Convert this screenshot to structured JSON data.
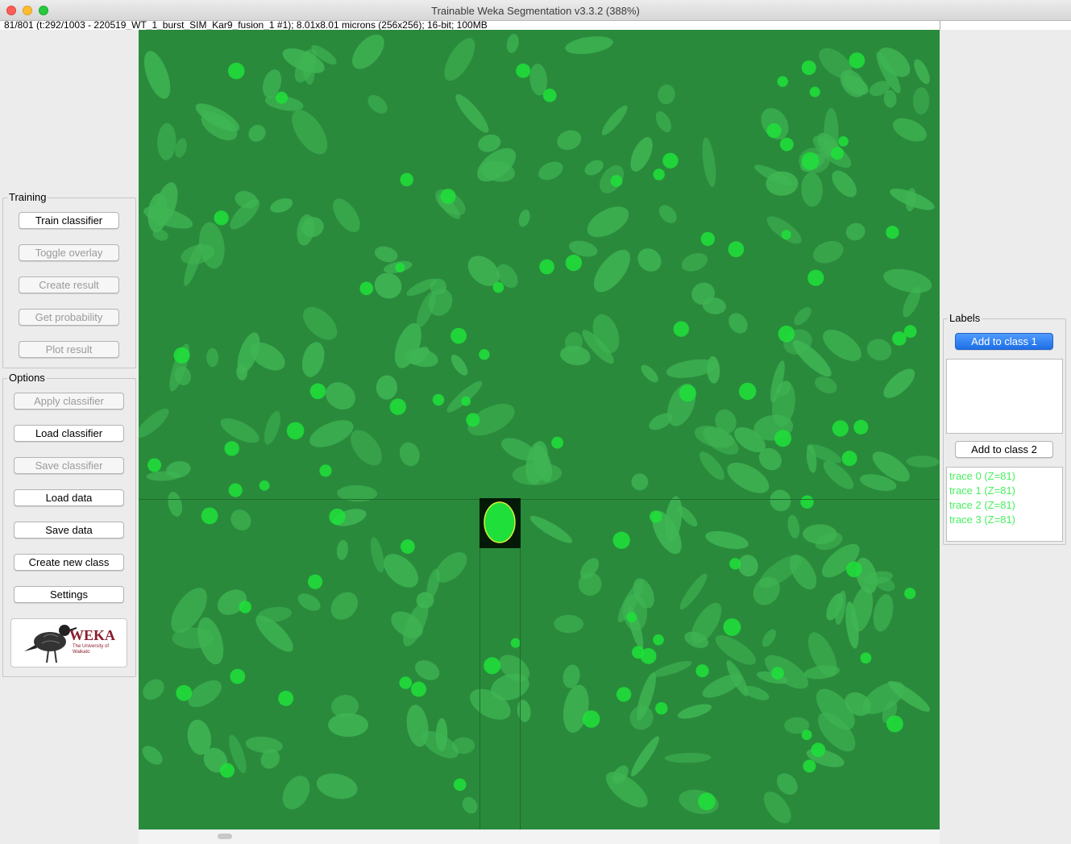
{
  "window": {
    "title": "Trainable Weka Segmentation v3.3.2 (388%)",
    "status": "81/801 (t:292/1003 - 220519_WT_1_burst_SIM_Kar9_fusion_1 #1); 8.01x8.01 microns (256x256); 16-bit; 100MB"
  },
  "training": {
    "title": "Training",
    "train": "Train classifier",
    "toggle": "Toggle overlay",
    "create_result": "Create result",
    "probability": "Get probability",
    "plot": "Plot result"
  },
  "options": {
    "title": "Options",
    "apply": "Apply classifier",
    "load_classifier": "Load classifier",
    "save_classifier": "Save classifier",
    "load_data": "Load data",
    "save_data": "Save data",
    "new_class": "Create new class",
    "settings": "Settings"
  },
  "logo": {
    "name": "WEKA",
    "sub": "The University of Waikato"
  },
  "labels": {
    "title": "Labels",
    "add1": "Add to class 1",
    "add2": "Add to class 2",
    "traces": [
      "trace 0 (Z=81)",
      "trace 1 (Z=81)",
      "trace 2 (Z=81)",
      "trace 3 (Z=81)"
    ]
  },
  "colors": {
    "canvas": "#2a8a3c",
    "blob": "#3fb553",
    "spot": "#1fe03a",
    "roi_outline": "#d8f03a",
    "trace_text": "#48f060",
    "primary_button": "#1e6fe6"
  }
}
